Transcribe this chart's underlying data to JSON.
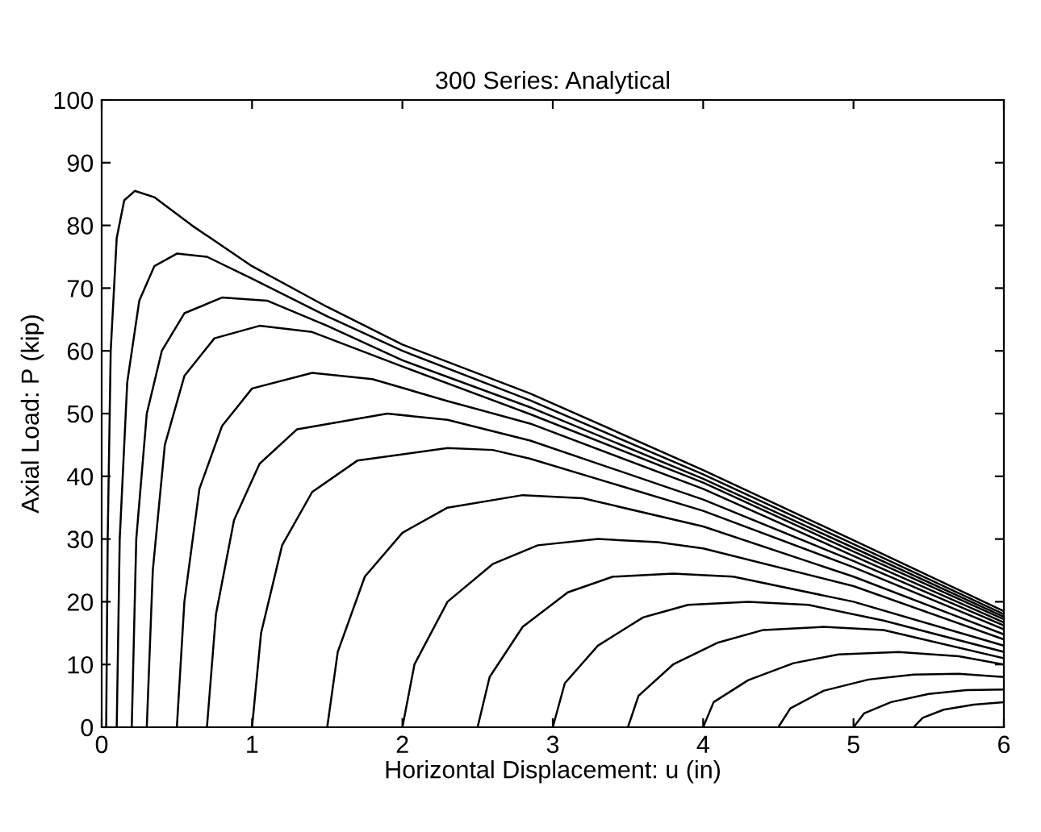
{
  "chart_data": {
    "type": "line",
    "title": "300 Series: Analytical",
    "xlabel": "Horizontal Displacement: u (in)",
    "ylabel": "Axial Load: P (kip)",
    "xlim": [
      0,
      6
    ],
    "xticks": [
      0,
      1,
      2,
      3,
      4,
      5,
      6
    ],
    "ylim": [
      0,
      100
    ],
    "yticks": [
      0,
      10,
      20,
      30,
      40,
      50,
      60,
      70,
      80,
      90,
      100
    ],
    "grid": false,
    "line_style": "solid",
    "marker": "none",
    "series": [
      {
        "color": "#000000",
        "x": [
          0.03,
          0.04,
          0.06,
          0.1,
          0.15,
          0.22,
          0.35,
          0.6,
          1,
          1.5,
          2,
          2.85,
          4,
          5,
          6
        ],
        "values": [
          0,
          30,
          60,
          78,
          84,
          85.5,
          84.5,
          80,
          73.5,
          67,
          61,
          53.2,
          41,
          29.8,
          18.5
        ]
      },
      {
        "color": "#000000",
        "x": [
          0.1,
          0.12,
          0.17,
          0.25,
          0.35,
          0.5,
          0.7,
          1,
          1.5,
          2,
          2.85,
          4,
          5,
          6
        ],
        "values": [
          0,
          30,
          55,
          68,
          73.5,
          75.5,
          75,
          71.5,
          65.5,
          60,
          52.1,
          40.3,
          29.2,
          18
        ]
      },
      {
        "color": "#000000",
        "x": [
          0.2,
          0.23,
          0.3,
          0.4,
          0.55,
          0.8,
          1.1,
          1.5,
          2,
          2.85,
          4,
          5,
          6
        ],
        "values": [
          0,
          30,
          50,
          60,
          66,
          68.5,
          68,
          64,
          58.5,
          51,
          39.6,
          28.6,
          17.6
        ]
      },
      {
        "color": "#000000",
        "x": [
          0.3,
          0.34,
          0.42,
          0.55,
          0.75,
          1.05,
          1.4,
          2,
          2.85,
          4,
          5,
          6
        ],
        "values": [
          0,
          25,
          45,
          56,
          62,
          64,
          63,
          57.5,
          49.9,
          39,
          28,
          17.2
        ]
      },
      {
        "color": "#000000",
        "x": [
          0.5,
          0.55,
          0.65,
          0.8,
          1,
          1.4,
          1.8,
          2.3,
          2.85,
          4,
          5,
          6
        ],
        "values": [
          0,
          20,
          38,
          48,
          54,
          56.5,
          55.5,
          52,
          48.4,
          38,
          27.3,
          16.7
        ]
      },
      {
        "color": "#000000",
        "x": [
          0.7,
          0.76,
          0.88,
          1.05,
          1.3,
          1.9,
          2.3,
          2.85,
          4,
          5,
          6
        ],
        "values": [
          0,
          18,
          33,
          42,
          47.5,
          50,
          49,
          45.7,
          36.3,
          26.5,
          16.2
        ]
      },
      {
        "color": "#000000",
        "x": [
          1,
          1.06,
          1.2,
          1.4,
          1.7,
          2.3,
          2.6,
          2.85,
          4,
          5,
          6
        ],
        "values": [
          0,
          15,
          29,
          37.5,
          42.5,
          44.5,
          44.2,
          42.8,
          34.5,
          25.5,
          15.6
        ]
      },
      {
        "color": "#000000",
        "x": [
          1.5,
          1.57,
          1.75,
          2,
          2.3,
          2.8,
          3.2,
          4,
          5,
          6
        ],
        "values": [
          0,
          12,
          24,
          31,
          35,
          37,
          36.5,
          32,
          24,
          14.8
        ]
      },
      {
        "color": "#000000",
        "x": [
          2,
          2.08,
          2.3,
          2.6,
          2.9,
          3.3,
          3.7,
          4,
          5,
          6
        ],
        "values": [
          0,
          10,
          20,
          26,
          29,
          30,
          29.5,
          28.5,
          22.5,
          14
        ]
      },
      {
        "color": "#000000",
        "x": [
          2.5,
          2.58,
          2.8,
          3.1,
          3.4,
          3.8,
          4.2,
          5,
          6
        ],
        "values": [
          0,
          8,
          16,
          21.5,
          24,
          24.5,
          24,
          20,
          13
        ]
      },
      {
        "color": "#000000",
        "x": [
          3,
          3.08,
          3.3,
          3.6,
          3.9,
          4.3,
          4.7,
          5.2,
          6
        ],
        "values": [
          0,
          7,
          13,
          17.5,
          19.5,
          20,
          19.5,
          17,
          12
        ]
      },
      {
        "color": "#000000",
        "x": [
          3.5,
          3.57,
          3.8,
          4.1,
          4.4,
          4.8,
          5.2,
          6
        ],
        "values": [
          0,
          5,
          10,
          13.5,
          15.5,
          16,
          15.5,
          11
        ]
      },
      {
        "color": "#000000",
        "x": [
          4,
          4.07,
          4.3,
          4.6,
          4.9,
          5.3,
          5.7,
          6
        ],
        "values": [
          0,
          4,
          7.5,
          10.2,
          11.6,
          12,
          11.3,
          10
        ]
      },
      {
        "color": "#000000",
        "x": [
          4.5,
          4.58,
          4.8,
          5.1,
          5.4,
          5.7,
          6
        ],
        "values": [
          0,
          3,
          5.8,
          7.6,
          8.4,
          8.5,
          8
        ]
      },
      {
        "color": "#000000",
        "x": [
          5,
          5.07,
          5.25,
          5.5,
          5.75,
          6
        ],
        "values": [
          0,
          2.2,
          4,
          5.3,
          5.9,
          6
        ]
      },
      {
        "color": "#000000",
        "x": [
          5.4,
          5.46,
          5.6,
          5.8,
          6
        ],
        "values": [
          0,
          1.5,
          2.8,
          3.6,
          4
        ]
      }
    ]
  }
}
